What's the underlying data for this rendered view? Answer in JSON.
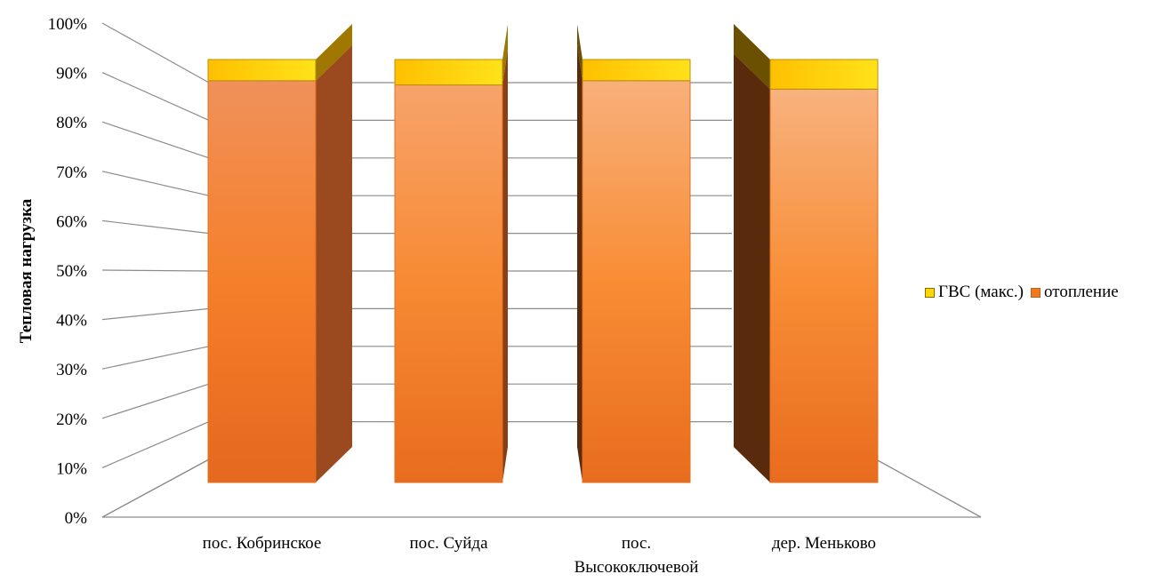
{
  "chart_data": {
    "type": "bar",
    "stacked": "percent",
    "three_d": true,
    "categories": [
      "пос. Кобринское",
      "пос. Суйда",
      "пос. Высокоключевой",
      "дер. Меньково"
    ],
    "category_lines": [
      [
        "пос. Кобринское"
      ],
      [
        "пос. Суйда"
      ],
      [
        "пос.",
        "Высокоключевой"
      ],
      [
        "дер. Меньково"
      ]
    ],
    "series": [
      {
        "name": "ГВС (макс.)",
        "values": [
          5,
          6,
          5,
          7
        ],
        "color": "#FFD700"
      },
      {
        "name": "отопление",
        "values": [
          95,
          94,
          95,
          93
        ],
        "color": "#F07A20"
      }
    ],
    "ylabel": "Тепловая нагрузка",
    "xlabel": "",
    "ylim": [
      0,
      100
    ],
    "yticks": [
      "0%",
      "10%",
      "20%",
      "30%",
      "40%",
      "50%",
      "60%",
      "70%",
      "80%",
      "90%",
      "100%"
    ],
    "grid": true,
    "legend": "right"
  }
}
